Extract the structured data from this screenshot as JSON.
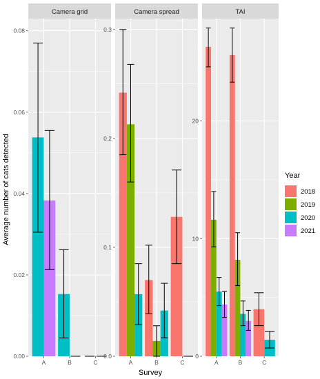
{
  "chart_data": {
    "type": "bar",
    "xlabel": "Survey",
    "ylabel": "Average number of cats detected",
    "legend": {
      "title": "Year",
      "placement": "right",
      "entries": [
        {
          "label": "2018",
          "color": "#F8766D"
        },
        {
          "label": "2019",
          "color": "#7CAE00"
        },
        {
          "label": "2020",
          "color": "#00BFC4"
        },
        {
          "label": "2021",
          "color": "#C77CFF"
        }
      ]
    },
    "categories": [
      "A",
      "B",
      "C"
    ],
    "years": [
      "2018",
      "2019",
      "2020",
      "2021"
    ],
    "panels": [
      {
        "title": "Camera grid",
        "ylim": [
          0,
          0.083
        ],
        "yticks": [
          0.0,
          0.02,
          0.04,
          0.06,
          0.08
        ],
        "ytick_labels": [
          "0.00",
          "0.02",
          "0.04",
          "0.06",
          "0.08"
        ],
        "groups": [
          {
            "category": "A",
            "bars": [
              {
                "year": "2020",
                "value": 0.0538,
                "err_low": 0.0305,
                "err_high": 0.077
              },
              {
                "year": "2021",
                "value": 0.0383,
                "err_low": 0.0213,
                "err_high": 0.0555
              }
            ]
          },
          {
            "category": "B",
            "bars": [
              {
                "year": "2020",
                "value": 0.0153,
                "err_low": 0.0045,
                "err_high": 0.0262
              },
              {
                "year": "2021",
                "value": 0.0,
                "err_low": 0.0,
                "err_high": 0.0
              }
            ]
          },
          {
            "category": "C",
            "bars": [
              {
                "year": "2020",
                "value": 0.0,
                "err_low": 0.0,
                "err_high": 0.0
              },
              {
                "year": "2021",
                "value": 0.0,
                "err_low": 0.0,
                "err_high": 0.0
              }
            ]
          }
        ]
      },
      {
        "title": "Camera spread",
        "ylim": [
          0,
          0.31
        ],
        "yticks": [
          0.0,
          0.1,
          0.2,
          0.3
        ],
        "ytick_labels": [
          "0.0",
          "0.1",
          "0.2",
          "0.3"
        ],
        "groups": [
          {
            "category": "A",
            "bars": [
              {
                "year": "2018",
                "value": 0.242,
                "err_low": 0.185,
                "err_high": 0.3
              },
              {
                "year": "2019",
                "value": 0.213,
                "err_low": 0.16,
                "err_high": 0.268
              },
              {
                "year": "2020",
                "value": 0.057,
                "err_low": 0.029,
                "err_high": 0.085
              }
            ]
          },
          {
            "category": "B",
            "bars": [
              {
                "year": "2018",
                "value": 0.07,
                "err_low": 0.039,
                "err_high": 0.102
              },
              {
                "year": "2019",
                "value": 0.014,
                "err_low": 0.0,
                "err_high": 0.028
              },
              {
                "year": "2020",
                "value": 0.042,
                "err_low": 0.017,
                "err_high": 0.067
              }
            ]
          },
          {
            "category": "C",
            "bars": [
              {
                "year": "2018",
                "value": 0.128,
                "err_low": 0.085,
                "err_high": 0.171
              },
              {
                "year": "2020",
                "value": 0.0,
                "err_low": 0.0,
                "err_high": 0.0
              }
            ]
          }
        ]
      },
      {
        "title": "TAI",
        "ylim": [
          0,
          28.7
        ],
        "yticks": [
          0,
          10,
          20
        ],
        "ytick_labels": [
          "0",
          "10",
          "20"
        ],
        "groups": [
          {
            "category": "A",
            "bars": [
              {
                "year": "2018",
                "value": 26.3,
                "err_low": 24.6,
                "err_high": 27.9
              },
              {
                "year": "2019",
                "value": 11.6,
                "err_low": 9.3,
                "err_high": 14.0
              },
              {
                "year": "2020",
                "value": 5.5,
                "err_low": 4.3,
                "err_high": 6.7
              },
              {
                "year": "2021",
                "value": 4.4,
                "err_low": 3.3,
                "err_high": 5.5
              }
            ]
          },
          {
            "category": "B",
            "bars": [
              {
                "year": "2018",
                "value": 25.6,
                "err_low": 23.3,
                "err_high": 27.9
              },
              {
                "year": "2019",
                "value": 8.2,
                "err_low": 6.0,
                "err_high": 10.5
              },
              {
                "year": "2020",
                "value": 3.6,
                "err_low": 2.6,
                "err_high": 4.7
              },
              {
                "year": "2021",
                "value": 3.0,
                "err_low": 2.2,
                "err_high": 3.9
              }
            ]
          },
          {
            "category": "C",
            "bars": [
              {
                "year": "2018",
                "value": 4.0,
                "err_low": 2.6,
                "err_high": 5.4
              },
              {
                "year": "2020",
                "value": 1.4,
                "err_low": 0.7,
                "err_high": 2.1
              }
            ]
          }
        ]
      }
    ]
  }
}
